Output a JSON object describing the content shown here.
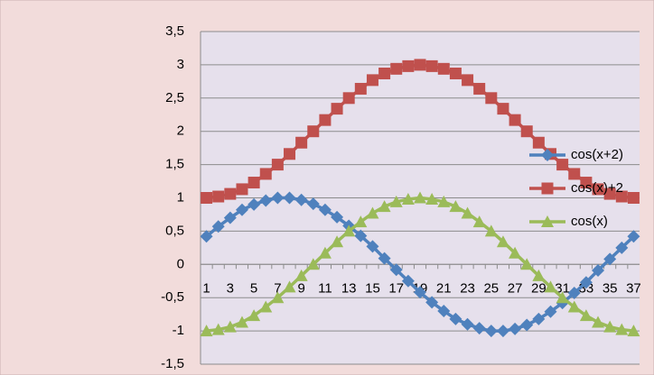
{
  "chart_data": {
    "type": "line",
    "categories": [
      1,
      null,
      3,
      null,
      5,
      null,
      7,
      null,
      9,
      null,
      11,
      null,
      13,
      null,
      15,
      null,
      17,
      null,
      19,
      null,
      21,
      null,
      23,
      null,
      25,
      null,
      27,
      null,
      29,
      null,
      31,
      null,
      33,
      null,
      35,
      null,
      37
    ],
    "series": [
      {
        "name": "cos(x+2)",
        "color": "#4f81bd",
        "marker": "diamond",
        "values": [
          0.42,
          0.57,
          0.7,
          0.82,
          0.9,
          0.96,
          1.0,
          1.0,
          0.97,
          0.91,
          0.82,
          0.71,
          0.58,
          0.43,
          0.27,
          0.09,
          -0.08,
          -0.25,
          -0.42,
          -0.57,
          -0.7,
          -0.82,
          -0.9,
          -0.96,
          -1.0,
          -1.0,
          -0.97,
          -0.91,
          -0.82,
          -0.71,
          -0.58,
          -0.43,
          -0.27,
          -0.09,
          0.08,
          0.25,
          0.42
        ]
      },
      {
        "name": "cos(x)+2",
        "color": "#c0504d",
        "marker": "square",
        "values": [
          1.0,
          1.02,
          1.06,
          1.13,
          1.23,
          1.36,
          1.5,
          1.66,
          1.83,
          2.0,
          2.17,
          2.34,
          2.5,
          2.64,
          2.77,
          2.87,
          2.94,
          2.98,
          3.0,
          2.98,
          2.94,
          2.87,
          2.77,
          2.64,
          2.5,
          2.34,
          2.17,
          2.0,
          1.83,
          1.66,
          1.5,
          1.36,
          1.23,
          1.13,
          1.06,
          1.02,
          1.0
        ]
      },
      {
        "name": "cos(x)",
        "color": "#9bbb59",
        "marker": "triangle",
        "values": [
          -1.0,
          -0.98,
          -0.94,
          -0.87,
          -0.77,
          -0.64,
          -0.5,
          -0.34,
          -0.17,
          0.0,
          0.17,
          0.34,
          0.5,
          0.64,
          0.77,
          0.87,
          0.94,
          0.98,
          1.0,
          0.98,
          0.94,
          0.87,
          0.77,
          0.64,
          0.5,
          0.34,
          0.17,
          0.0,
          -0.17,
          -0.34,
          -0.5,
          -0.64,
          -0.77,
          -0.87,
          -0.94,
          -0.98,
          -1.0
        ]
      }
    ],
    "ylim": [
      -1.5,
      3.5
    ],
    "yticks": [
      {
        "value": -1.5,
        "label": "-1,5"
      },
      -1,
      {
        "value": -0.5,
        "label": "-0,5"
      },
      0,
      {
        "value": 0.5,
        "label": "0,5"
      },
      1,
      {
        "value": 1.5,
        "label": "1,5"
      },
      2,
      {
        "value": 2.5,
        "label": "2,5"
      },
      3,
      {
        "value": 3.5,
        "label": "3,5"
      }
    ],
    "grid": true,
    "legend": "right"
  }
}
